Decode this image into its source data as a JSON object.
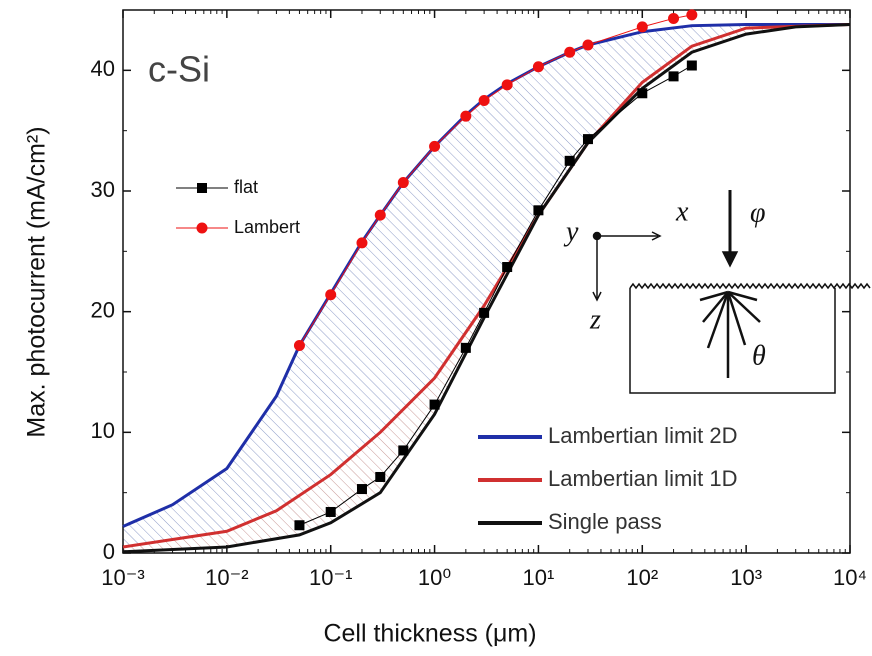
{
  "chart_data": {
    "type": "line",
    "xlabel": "Cell thickness (μm)",
    "ylabel": "Max. photocurrent (mA/cm²)",
    "xscale": "log",
    "xlim": [
      0.001,
      10000
    ],
    "ylim": [
      0,
      45
    ],
    "xticks": [
      {
        "value": 0.001,
        "label": "10⁻³"
      },
      {
        "value": 0.01,
        "label": "10⁻²"
      },
      {
        "value": 0.1,
        "label": "10⁻¹"
      },
      {
        "value": 1,
        "label": "10⁰"
      },
      {
        "value": 10,
        "label": "10¹"
      },
      {
        "value": 100,
        "label": "10²"
      },
      {
        "value": 1000,
        "label": "10³"
      },
      {
        "value": 10000,
        "label": "10⁴"
      }
    ],
    "yticks": [
      0,
      10,
      20,
      30,
      40
    ],
    "annotations": [
      "c-Si",
      "y",
      "x",
      "z",
      "φ",
      "θ"
    ],
    "series": [
      {
        "name": "Lambertian limit 2D",
        "color": "#1f2fa8",
        "marker": "none",
        "x": [
          0.001,
          0.003,
          0.01,
          0.03,
          0.05,
          0.1,
          0.2,
          0.3,
          0.5,
          1,
          2,
          3,
          5,
          10,
          20,
          30,
          100,
          300,
          1000,
          10000
        ],
        "values": [
          2.2,
          4,
          7,
          13,
          17.2,
          21.5,
          25.8,
          28,
          30.7,
          33.7,
          36.3,
          37.6,
          38.9,
          40.3,
          41.5,
          42.1,
          43.2,
          43.7,
          43.8,
          43.8
        ]
      },
      {
        "name": "Lambertian limit 1D",
        "color": "#d03030",
        "marker": "none",
        "x": [
          0.001,
          0.01,
          0.03,
          0.1,
          0.3,
          1,
          3,
          10,
          30,
          100,
          300,
          1000,
          10000
        ],
        "values": [
          0.5,
          1.8,
          3.5,
          6.5,
          10,
          14.5,
          20.5,
          28,
          34,
          39,
          42,
          43.5,
          43.8
        ]
      },
      {
        "name": "Single pass",
        "color": "#111111",
        "marker": "none",
        "x": [
          0.001,
          0.01,
          0.05,
          0.1,
          0.3,
          1,
          3,
          10,
          30,
          100,
          300,
          1000,
          3000,
          10000
        ],
        "values": [
          0.1,
          0.5,
          1.5,
          2.5,
          5,
          11.5,
          19.5,
          28,
          34,
          38.5,
          41.5,
          43,
          43.6,
          43.8
        ]
      },
      {
        "name": "flat",
        "color": "#000000",
        "marker": "square",
        "x": [
          0.05,
          0.1,
          0.2,
          0.3,
          0.5,
          1,
          2,
          3,
          5,
          10,
          20,
          30,
          100,
          200,
          300
        ],
        "values": [
          2.3,
          3.4,
          5.3,
          6.3,
          8.5,
          12.3,
          17,
          19.9,
          23.7,
          28.4,
          32.5,
          34.3,
          38.1,
          39.5,
          40.4
        ]
      },
      {
        "name": "Lambert",
        "color": "#ee1111",
        "marker": "circle",
        "x": [
          0.05,
          0.1,
          0.2,
          0.3,
          0.5,
          1,
          2,
          3,
          5,
          10,
          20,
          30,
          100,
          200,
          300
        ],
        "values": [
          17.2,
          21.4,
          25.7,
          28,
          30.7,
          33.7,
          36.2,
          37.5,
          38.8,
          40.3,
          41.5,
          42.1,
          43.6,
          44.3,
          44.6
        ]
      }
    ]
  }
}
